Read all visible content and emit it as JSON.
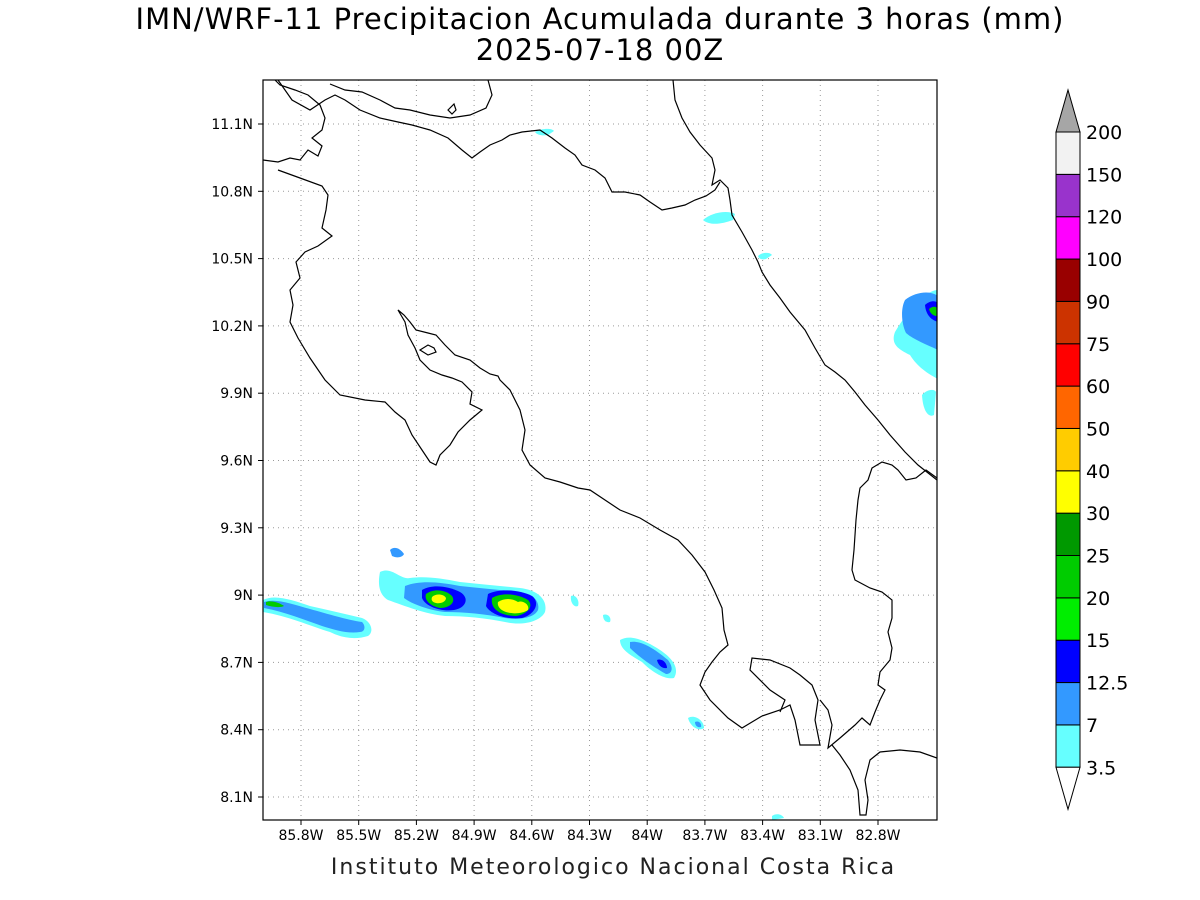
{
  "header": {
    "title_line1": "IMN/WRF-11 Precipitacion Acumulada durante 3 horas (mm)",
    "title_line2": "2025-07-18 00Z"
  },
  "footer": {
    "credit": "Instituto Meteorologico Nacional Costa Rica"
  },
  "map": {
    "lat_ticks": [
      "11.1N",
      "10.8N",
      "10.5N",
      "10.2N",
      "9.9N",
      "9.6N",
      "9.3N",
      "9N",
      "8.7N",
      "8.4N",
      "8.1N"
    ],
    "lon_ticks": [
      "85.8W",
      "85.5W",
      "85.2W",
      "84.9W",
      "84.6W",
      "84.3W",
      "84W",
      "83.7W",
      "83.4W",
      "83.1W",
      "82.8W"
    ],
    "grid": "dotted"
  },
  "legend": {
    "levels": [
      "3.5",
      "7",
      "12.5",
      "15",
      "20",
      "25",
      "30",
      "40",
      "50",
      "60",
      "75",
      "90",
      "100",
      "120",
      "150",
      "200"
    ],
    "colors": [
      "#66ffff",
      "#3399ff",
      "#0000ff",
      "#00ee00",
      "#00cc00",
      "#009900",
      "#ffff00",
      "#ffcc00",
      "#ff6600",
      "#ff0000",
      "#cc3300",
      "#990000",
      "#ff00ff",
      "#9933cc",
      "#f2f2f2",
      "#a6a6a6"
    ]
  }
}
